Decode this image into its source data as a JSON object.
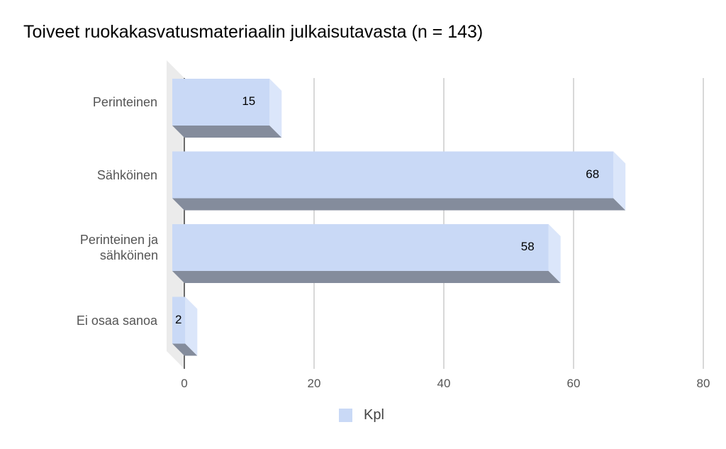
{
  "chart_data": {
    "type": "bar",
    "orientation": "horizontal",
    "title": "Toiveet ruokakasvatusmateriaalin julkaisutavasta (n = 143)",
    "categories": [
      "Perinteinen",
      "Sähköinen",
      "Perinteinen ja sähköinen",
      "Ei osaa sanoa"
    ],
    "series": [
      {
        "name": "Kpl",
        "values": [
          15,
          68,
          58,
          2
        ],
        "color": "#c9d9f6"
      }
    ],
    "data_labels": [
      "15",
      "68",
      "58",
      "2"
    ],
    "xlim": [
      0,
      80
    ],
    "x_ticks": [
      0,
      20,
      40,
      60,
      80
    ],
    "x_tick_labels": [
      "0",
      "20",
      "40",
      "60",
      "80"
    ],
    "grid": true,
    "legend_position": "bottom",
    "style": "3d",
    "colors": {
      "bar_face": "#c9d9f6",
      "bar_side": "#dbe6fa",
      "bar_bottom": "#848c9c",
      "grid": "#cccccc",
      "back_wall": "#ebebeb"
    }
  }
}
